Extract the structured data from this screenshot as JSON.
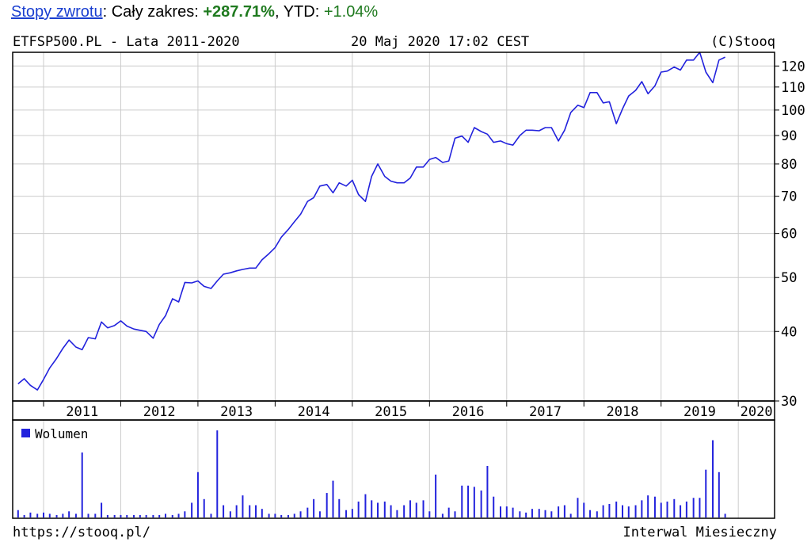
{
  "summary": {
    "link_label": "Stopy zwrotu",
    "range_label": ": Cały zakres: ",
    "range_value": "+287.71%",
    "ytd_label": ", YTD: ",
    "ytd_value": "+1.04%"
  },
  "header": {
    "symbol_title": "ETFSP500.PL - Lata 2011-2020",
    "datetime": "20 Maj 2020 17:02 CEST",
    "copyright": "(C)Stooq"
  },
  "footer": {
    "url": "https://stooq.pl/",
    "interval": "Interwal Miesieczny"
  },
  "colors": {
    "line": "#2222dd",
    "volume": "#2222dd",
    "grid": "#cccccc",
    "summary_green": "#1f7a1f",
    "link": "#1a3fd0"
  },
  "chart_data": {
    "type": "line",
    "scale": "log",
    "x_range": [
      2010.6,
      2020.47
    ],
    "y_range": [
      30,
      127
    ],
    "y_ticks": [
      30,
      40,
      50,
      60,
      70,
      80,
      90,
      100,
      110,
      120
    ],
    "x_tick_labels": [
      "2011",
      "2012",
      "2013",
      "2014",
      "2015",
      "2016",
      "2017",
      "2018",
      "2019",
      "2020"
    ],
    "grid": true,
    "series": [
      {
        "values": [
          [
            2010.67,
            32.2
          ],
          [
            2010.75,
            32.9
          ],
          [
            2010.83,
            32.0
          ],
          [
            2010.92,
            31.4
          ],
          [
            2011.0,
            32.8
          ],
          [
            2011.08,
            34.4
          ],
          [
            2011.17,
            35.8
          ],
          [
            2011.25,
            37.3
          ],
          [
            2011.33,
            38.6
          ],
          [
            2011.42,
            37.5
          ],
          [
            2011.5,
            37.1
          ],
          [
            2011.58,
            39.0
          ],
          [
            2011.67,
            38.8
          ],
          [
            2011.75,
            41.6
          ],
          [
            2011.83,
            40.6
          ],
          [
            2011.92,
            41.0
          ],
          [
            2012.0,
            41.8
          ],
          [
            2012.08,
            40.9
          ],
          [
            2012.17,
            40.4
          ],
          [
            2012.25,
            40.2
          ],
          [
            2012.33,
            40.0
          ],
          [
            2012.42,
            38.9
          ],
          [
            2012.5,
            41.2
          ],
          [
            2012.58,
            42.7
          ],
          [
            2012.67,
            45.8
          ],
          [
            2012.75,
            45.2
          ],
          [
            2012.83,
            49.0
          ],
          [
            2012.92,
            48.9
          ],
          [
            2013.0,
            49.3
          ],
          [
            2013.08,
            48.2
          ],
          [
            2013.17,
            47.8
          ],
          [
            2013.25,
            49.3
          ],
          [
            2013.33,
            50.7
          ],
          [
            2013.42,
            51.0
          ],
          [
            2013.5,
            51.4
          ],
          [
            2013.58,
            51.7
          ],
          [
            2013.67,
            52.0
          ],
          [
            2013.75,
            52.0
          ],
          [
            2013.83,
            53.8
          ],
          [
            2013.92,
            55.2
          ],
          [
            2014.0,
            56.6
          ],
          [
            2014.08,
            59.1
          ],
          [
            2014.17,
            61.0
          ],
          [
            2014.25,
            63.0
          ],
          [
            2014.33,
            65.0
          ],
          [
            2014.42,
            68.5
          ],
          [
            2014.5,
            69.6
          ],
          [
            2014.58,
            73.0
          ],
          [
            2014.67,
            73.5
          ],
          [
            2014.75,
            71.0
          ],
          [
            2014.83,
            74.0
          ],
          [
            2014.92,
            73.0
          ],
          [
            2015.0,
            74.8
          ],
          [
            2015.08,
            70.5
          ],
          [
            2015.17,
            68.5
          ],
          [
            2015.25,
            76.0
          ],
          [
            2015.33,
            80.0
          ],
          [
            2015.42,
            76.0
          ],
          [
            2015.5,
            74.5
          ],
          [
            2015.58,
            74.0
          ],
          [
            2015.67,
            74.0
          ],
          [
            2015.75,
            75.5
          ],
          [
            2015.83,
            79.0
          ],
          [
            2015.92,
            79.0
          ],
          [
            2016.0,
            81.5
          ],
          [
            2016.08,
            82.2
          ],
          [
            2016.17,
            80.5
          ],
          [
            2016.25,
            81.0
          ],
          [
            2016.33,
            89.0
          ],
          [
            2016.42,
            89.8
          ],
          [
            2016.5,
            87.5
          ],
          [
            2016.58,
            93.0
          ],
          [
            2016.67,
            91.5
          ],
          [
            2016.75,
            90.5
          ],
          [
            2016.83,
            87.5
          ],
          [
            2016.92,
            88.0
          ],
          [
            2017.0,
            87.0
          ],
          [
            2017.08,
            86.5
          ],
          [
            2017.17,
            90.0
          ],
          [
            2017.25,
            92.0
          ],
          [
            2017.33,
            92.0
          ],
          [
            2017.42,
            91.8
          ],
          [
            2017.5,
            93.0
          ],
          [
            2017.58,
            93.0
          ],
          [
            2017.67,
            88.0
          ],
          [
            2017.75,
            92.0
          ],
          [
            2017.83,
            99.0
          ],
          [
            2017.92,
            102.0
          ],
          [
            2018.0,
            101.0
          ],
          [
            2018.08,
            107.5
          ],
          [
            2018.17,
            107.5
          ],
          [
            2018.25,
            103.0
          ],
          [
            2018.33,
            103.5
          ],
          [
            2018.42,
            94.5
          ],
          [
            2018.5,
            100.5
          ],
          [
            2018.58,
            106.0
          ],
          [
            2018.67,
            108.5
          ],
          [
            2018.75,
            112.5
          ],
          [
            2018.83,
            107.0
          ],
          [
            2018.92,
            110.5
          ],
          [
            2019.0,
            117.0
          ],
          [
            2019.08,
            117.5
          ],
          [
            2019.17,
            119.5
          ],
          [
            2019.25,
            118.0
          ],
          [
            2019.33,
            123.0
          ],
          [
            2019.42,
            123.0
          ],
          [
            2019.5,
            127.0
          ],
          [
            2019.58,
            117.0
          ],
          [
            2019.67,
            112.0
          ],
          [
            2019.75,
            123.0
          ],
          [
            2019.83,
            124.5
          ]
        ]
      }
    ],
    "volume": {
      "legend": "Wolumen",
      "values": [
        [
          2010.67,
          6
        ],
        [
          2010.75,
          2
        ],
        [
          2010.83,
          4
        ],
        [
          2010.92,
          3
        ],
        [
          2011.0,
          4
        ],
        [
          2011.08,
          3
        ],
        [
          2011.17,
          2
        ],
        [
          2011.25,
          3
        ],
        [
          2011.33,
          5
        ],
        [
          2011.42,
          3
        ],
        [
          2011.5,
          53
        ],
        [
          2011.58,
          3
        ],
        [
          2011.67,
          3
        ],
        [
          2011.75,
          12
        ],
        [
          2011.83,
          2
        ],
        [
          2011.92,
          2
        ],
        [
          2012.0,
          2
        ],
        [
          2012.08,
          2
        ],
        [
          2012.17,
          2
        ],
        [
          2012.25,
          2
        ],
        [
          2012.33,
          2
        ],
        [
          2012.42,
          2
        ],
        [
          2012.5,
          2
        ],
        [
          2012.58,
          3
        ],
        [
          2012.67,
          2
        ],
        [
          2012.75,
          3
        ],
        [
          2012.83,
          5
        ],
        [
          2012.92,
          12
        ],
        [
          2013.0,
          37
        ],
        [
          2013.08,
          15
        ],
        [
          2013.17,
          3
        ],
        [
          2013.25,
          71
        ],
        [
          2013.33,
          10
        ],
        [
          2013.42,
          5
        ],
        [
          2013.5,
          10
        ],
        [
          2013.58,
          18
        ],
        [
          2013.67,
          10
        ],
        [
          2013.75,
          10
        ],
        [
          2013.83,
          7
        ],
        [
          2013.92,
          3
        ],
        [
          2014.0,
          3
        ],
        [
          2014.08,
          2
        ],
        [
          2014.17,
          2
        ],
        [
          2014.25,
          3
        ],
        [
          2014.33,
          5
        ],
        [
          2014.42,
          8
        ],
        [
          2014.5,
          15
        ],
        [
          2014.58,
          5
        ],
        [
          2014.67,
          20
        ],
        [
          2014.75,
          30
        ],
        [
          2014.83,
          15
        ],
        [
          2014.92,
          6
        ],
        [
          2015.0,
          7
        ],
        [
          2015.08,
          13
        ],
        [
          2015.17,
          19
        ],
        [
          2015.25,
          14
        ],
        [
          2015.33,
          12
        ],
        [
          2015.42,
          13
        ],
        [
          2015.5,
          10
        ],
        [
          2015.58,
          6
        ],
        [
          2015.67,
          10
        ],
        [
          2015.75,
          14
        ],
        [
          2015.83,
          12
        ],
        [
          2015.92,
          14
        ],
        [
          2016.0,
          5
        ],
        [
          2016.08,
          35
        ],
        [
          2016.17,
          3
        ],
        [
          2016.25,
          8
        ],
        [
          2016.33,
          5
        ],
        [
          2016.42,
          26
        ],
        [
          2016.5,
          26
        ],
        [
          2016.58,
          25
        ],
        [
          2016.67,
          22
        ],
        [
          2016.75,
          42
        ],
        [
          2016.83,
          17
        ],
        [
          2016.92,
          9
        ],
        [
          2017.0,
          9
        ],
        [
          2017.08,
          8
        ],
        [
          2017.17,
          5
        ],
        [
          2017.25,
          4
        ],
        [
          2017.33,
          7
        ],
        [
          2017.42,
          7
        ],
        [
          2017.5,
          6
        ],
        [
          2017.58,
          5
        ],
        [
          2017.67,
          9
        ],
        [
          2017.75,
          10
        ],
        [
          2017.83,
          3
        ],
        [
          2017.92,
          16
        ],
        [
          2018.0,
          12
        ],
        [
          2018.08,
          6
        ],
        [
          2018.17,
          5
        ],
        [
          2018.25,
          10
        ],
        [
          2018.33,
          11
        ],
        [
          2018.42,
          13
        ],
        [
          2018.5,
          10
        ],
        [
          2018.58,
          9
        ],
        [
          2018.67,
          10
        ],
        [
          2018.75,
          14
        ],
        [
          2018.83,
          18
        ],
        [
          2018.92,
          17
        ],
        [
          2019.0,
          12
        ],
        [
          2019.08,
          13
        ],
        [
          2019.17,
          15
        ],
        [
          2019.25,
          10
        ],
        [
          2019.33,
          13
        ],
        [
          2019.42,
          16
        ],
        [
          2019.5,
          16
        ],
        [
          2019.58,
          39
        ],
        [
          2019.67,
          63
        ],
        [
          2019.75,
          37
        ],
        [
          2019.83,
          3
        ]
      ]
    }
  }
}
